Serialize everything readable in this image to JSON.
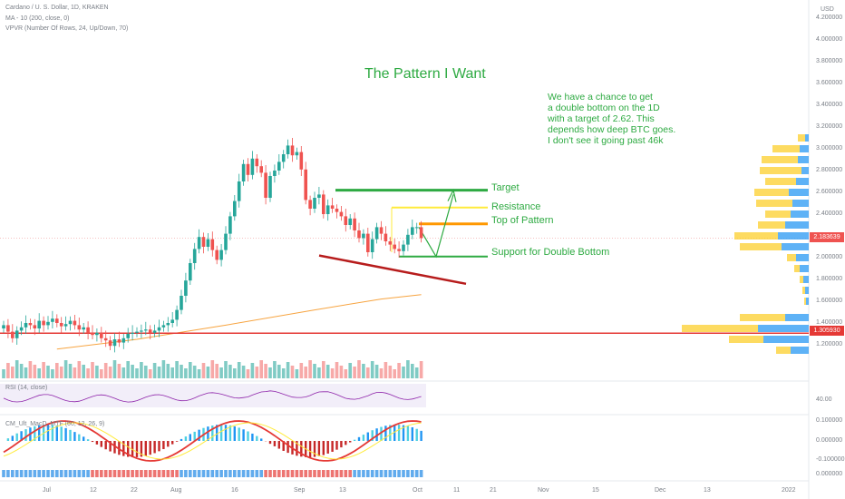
{
  "header": {
    "symbol_line": "Cardano / U. S. Dollar, 1D, KRAKEN",
    "ma_line": "MA - 10 (200, close, 0)",
    "vpvr_line": "VPVR (Number Of Rows, 24, Up/Down, 70)",
    "currency": "USD"
  },
  "annotations": {
    "title": "The Pattern I Want",
    "note_lines": [
      "We have a chance to get",
      "a double bottom on the 1D",
      "with a target of 2.62. This",
      "depends how deep BTC goes.",
      "I don't see it going past 46k"
    ],
    "target_label": "Target",
    "resistance_label": "Resistance",
    "top_label": "Top of Pattern",
    "support_label": "Support for Double Bottom"
  },
  "badges": {
    "last_price": "2.183639",
    "line_price": "1.305930"
  },
  "colors": {
    "up": "#26a69a",
    "down": "#ef5350",
    "green_line": "#2eaa42",
    "orange": "#ff9800",
    "yellow": "#ffeb3b",
    "red_line": "#e53935",
    "trend": "#b71c1c",
    "ma": "#f7a440"
  },
  "subpanes": {
    "rsi_label": "RSI (14, close)",
    "rsi_tick": "40.00",
    "macd_label": "CM_Ult_MacD_MTF (60, 12, 26, 9)",
    "macd_ticks": [
      "0.100000",
      "0.000000",
      "-0.100000",
      "0.000000"
    ]
  },
  "chart_data": {
    "type": "candlestick",
    "y_ticks": [
      "4.200000",
      "4.000000",
      "3.800000",
      "3.600000",
      "3.400000",
      "3.200000",
      "3.000000",
      "2.800000",
      "2.600000",
      "2.400000",
      "2.200000",
      "2.000000",
      "1.800000",
      "1.600000",
      "1.400000",
      "1.200000"
    ],
    "ylim": [
      1.0,
      4.3
    ],
    "x_ticks": [
      "Jul",
      "12",
      "22",
      "Aug",
      "16",
      "Sep",
      "13",
      "Oct",
      "11",
      "21",
      "Nov",
      "15",
      "Dec",
      "13",
      "2022"
    ],
    "closes": [
      1.38,
      1.32,
      1.26,
      1.33,
      1.36,
      1.4,
      1.38,
      1.35,
      1.42,
      1.38,
      1.41,
      1.44,
      1.4,
      1.37,
      1.39,
      1.42,
      1.38,
      1.34,
      1.36,
      1.31,
      1.29,
      1.31,
      1.26,
      1.24,
      1.19,
      1.25,
      1.22,
      1.26,
      1.3,
      1.31,
      1.32,
      1.33,
      1.34,
      1.31,
      1.33,
      1.36,
      1.38,
      1.4,
      1.43,
      1.52,
      1.65,
      1.79,
      1.95,
      2.08,
      2.19,
      2.1,
      2.17,
      2.07,
      1.98,
      2.07,
      2.22,
      2.38,
      2.52,
      2.7,
      2.86,
      2.76,
      2.91,
      2.84,
      2.78,
      2.55,
      2.75,
      2.8,
      2.88,
      2.95,
      3.03,
      2.94,
      2.97,
      2.81,
      2.53,
      2.45,
      2.55,
      2.58,
      2.4,
      2.48,
      2.45,
      2.42,
      2.38,
      2.3,
      2.36,
      2.25,
      2.18,
      2.22,
      2.05,
      2.17,
      2.28,
      2.22,
      2.15,
      2.12,
      2.08,
      2.06,
      2.12,
      2.21,
      2.28,
      2.28,
      2.18
    ],
    "ma200": [
      {
        "t": 12,
        "v": 1.16
      },
      {
        "t": 30,
        "v": 1.25
      },
      {
        "t": 50,
        "v": 1.38
      },
      {
        "t": 70,
        "v": 1.52
      },
      {
        "t": 85,
        "v": 1.62
      },
      {
        "t": 94,
        "v": 1.66
      }
    ],
    "levels": {
      "target": 2.62,
      "resistance": 2.46,
      "top_of_pattern": 2.31,
      "support": 2.01,
      "horizontal_red": 1.30593
    },
    "trendline": [
      {
        "t": 70,
        "v": 2.02
      },
      {
        "t": 102,
        "v": 1.76
      }
    ]
  }
}
